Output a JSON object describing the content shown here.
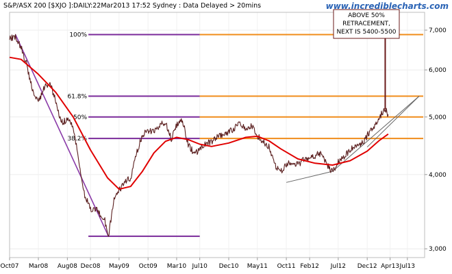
{
  "chart_data": {
    "type": "line",
    "title": "S&P/ASX 200 [$XJO ]:DAILY:22Mar2013 17:52 Sydney : Data Delayed > 20mins",
    "brand": "www.incrediblecharts.com",
    "y_scale": "log",
    "ylim": [
      2900,
      7500
    ],
    "y_ticks": [
      {
        "value": 3000,
        "label": "3,000"
      },
      {
        "value": 4000,
        "label": "4,000"
      },
      {
        "value": 5000,
        "label": "5,000"
      },
      {
        "value": 6000,
        "label": "6,000"
      },
      {
        "value": 7000,
        "label": "7,000"
      }
    ],
    "xlim": [
      "2007-10-01",
      "2013-09-30"
    ],
    "x_ticks": [
      {
        "date": "2007-10-01",
        "label": "Oct07"
      },
      {
        "date": "2008-03-01",
        "label": "Mar08"
      },
      {
        "date": "2008-08-01",
        "label": "Aug08"
      },
      {
        "date": "2008-12-01",
        "label": "Dec08"
      },
      {
        "date": "2009-05-01",
        "label": "May09"
      },
      {
        "date": "2009-10-01",
        "label": "Oct09"
      },
      {
        "date": "2010-03-01",
        "label": "Mar10"
      },
      {
        "date": "2010-07-01",
        "label": "Jul10"
      },
      {
        "date": "2010-12-01",
        "label": "Dec10"
      },
      {
        "date": "2011-05-01",
        "label": "May11"
      },
      {
        "date": "2011-10-01",
        "label": "Oct11"
      },
      {
        "date": "2012-02-01",
        "label": "Feb12"
      },
      {
        "date": "2012-07-01",
        "label": "Jul12"
      },
      {
        "date": "2012-12-01",
        "label": "Dec12"
      },
      {
        "date": "2013-04-01",
        "label": "Apr13"
      },
      {
        "date": "2013-07-01",
        "label": "Jul13"
      }
    ],
    "grid": true,
    "series": [
      {
        "color": "#5a1e1e",
        "points": [
          [
            "2007-10-01",
            6750
          ],
          [
            "2007-11-01",
            6850
          ],
          [
            "2007-12-01",
            6550
          ],
          [
            "2008-01-01",
            6100
          ],
          [
            "2008-02-01",
            5500
          ],
          [
            "2008-03-01",
            5300
          ],
          [
            "2008-04-01",
            5600
          ],
          [
            "2008-05-01",
            5700
          ],
          [
            "2008-06-01",
            5300
          ],
          [
            "2008-07-01",
            4900
          ],
          [
            "2008-08-01",
            4950
          ],
          [
            "2008-09-01",
            4800
          ],
          [
            "2008-10-01",
            4200
          ],
          [
            "2008-11-01",
            3700
          ],
          [
            "2008-12-01",
            3500
          ],
          [
            "2009-01-01",
            3500
          ],
          [
            "2009-02-15",
            3350
          ],
          [
            "2009-03-06",
            3150
          ],
          [
            "2009-04-01",
            3600
          ],
          [
            "2009-05-01",
            3750
          ],
          [
            "2009-06-01",
            3900
          ],
          [
            "2009-07-01",
            3950
          ],
          [
            "2009-08-01",
            4350
          ],
          [
            "2009-09-01",
            4650
          ],
          [
            "2009-10-01",
            4750
          ],
          [
            "2009-11-01",
            4720
          ],
          [
            "2009-12-01",
            4850
          ],
          [
            "2010-01-01",
            4900
          ],
          [
            "2010-02-01",
            4600
          ],
          [
            "2010-03-01",
            4850
          ],
          [
            "2010-04-01",
            4950
          ],
          [
            "2010-05-01",
            4500
          ],
          [
            "2010-06-01",
            4350
          ],
          [
            "2010-07-01",
            4400
          ],
          [
            "2010-08-01",
            4500
          ],
          [
            "2010-09-01",
            4550
          ],
          [
            "2010-10-01",
            4650
          ],
          [
            "2010-11-01",
            4650
          ],
          [
            "2010-12-01",
            4700
          ],
          [
            "2011-01-01",
            4800
          ],
          [
            "2011-02-01",
            4900
          ],
          [
            "2011-03-01",
            4750
          ],
          [
            "2011-04-01",
            4850
          ],
          [
            "2011-05-01",
            4650
          ],
          [
            "2011-06-01",
            4550
          ],
          [
            "2011-07-01",
            4450
          ],
          [
            "2011-08-01",
            4150
          ],
          [
            "2011-09-01",
            4050
          ],
          [
            "2011-10-01",
            4150
          ],
          [
            "2011-11-01",
            4200
          ],
          [
            "2011-12-01",
            4150
          ],
          [
            "2012-01-01",
            4250
          ],
          [
            "2012-02-01",
            4250
          ],
          [
            "2012-03-01",
            4300
          ],
          [
            "2012-04-01",
            4350
          ],
          [
            "2012-05-01",
            4150
          ],
          [
            "2012-06-01",
            4050
          ],
          [
            "2012-07-01",
            4200
          ],
          [
            "2012-08-01",
            4300
          ],
          [
            "2012-09-01",
            4400
          ],
          [
            "2012-10-01",
            4450
          ],
          [
            "2012-11-01",
            4500
          ],
          [
            "2012-12-01",
            4650
          ],
          [
            "2013-01-01",
            4800
          ],
          [
            "2013-02-01",
            5000
          ],
          [
            "2013-03-06",
            5150
          ],
          [
            "2013-03-22",
            5050
          ]
        ]
      },
      {
        "color": "#e00000",
        "points": [
          [
            "2007-10-01",
            6300
          ],
          [
            "2007-12-01",
            6250
          ],
          [
            "2008-03-01",
            5900
          ],
          [
            "2008-06-01",
            5500
          ],
          [
            "2008-09-01",
            5000
          ],
          [
            "2008-12-01",
            4400
          ],
          [
            "2009-03-01",
            3950
          ],
          [
            "2009-05-01",
            3780
          ],
          [
            "2009-07-01",
            3820
          ],
          [
            "2009-09-01",
            4050
          ],
          [
            "2009-11-01",
            4350
          ],
          [
            "2010-01-01",
            4550
          ],
          [
            "2010-03-01",
            4620
          ],
          [
            "2010-05-01",
            4580
          ],
          [
            "2010-07-01",
            4500
          ],
          [
            "2010-09-01",
            4460
          ],
          [
            "2010-12-01",
            4520
          ],
          [
            "2011-03-01",
            4620
          ],
          [
            "2011-05-01",
            4640
          ],
          [
            "2011-07-01",
            4560
          ],
          [
            "2011-09-01",
            4420
          ],
          [
            "2011-12-01",
            4250
          ],
          [
            "2012-03-01",
            4180
          ],
          [
            "2012-06-01",
            4150
          ],
          [
            "2012-09-01",
            4220
          ],
          [
            "2012-12-01",
            4380
          ],
          [
            "2013-02-01",
            4560
          ],
          [
            "2013-03-22",
            4680
          ]
        ]
      }
    ],
    "fib_levels": [
      {
        "label": "100%",
        "value": 6880
      },
      {
        "label": "61.8%",
        "value": 5420
      },
      {
        "label": "50%",
        "value": 5000
      },
      {
        "label": "38.2%",
        "value": 4600
      },
      {
        "label": "",
        "value": 3150
      }
    ],
    "trend_lines": [
      {
        "color": "#8a3aa8",
        "from": [
          "2007-11-01",
          6880
        ],
        "to": [
          "2009-03-06",
          3150
        ]
      },
      {
        "color": "#666666",
        "from": [
          "2011-10-01",
          3880
        ],
        "to": [
          "2012-06-01",
          4050
        ]
      },
      {
        "color": "#666666",
        "from": [
          "2012-06-01",
          4050
        ],
        "to": [
          "2013-09-01",
          5420
        ]
      },
      {
        "color": "#666666",
        "from": [
          "2012-12-01",
          4450
        ],
        "to": [
          "2013-09-01",
          5420
        ]
      }
    ],
    "annotation": {
      "lines": [
        "ABOVE 50%",
        "RETRACEMENT,",
        "NEXT IS 5400-5500"
      ],
      "point_to": [
        "2013-03-06",
        5150
      ]
    }
  }
}
